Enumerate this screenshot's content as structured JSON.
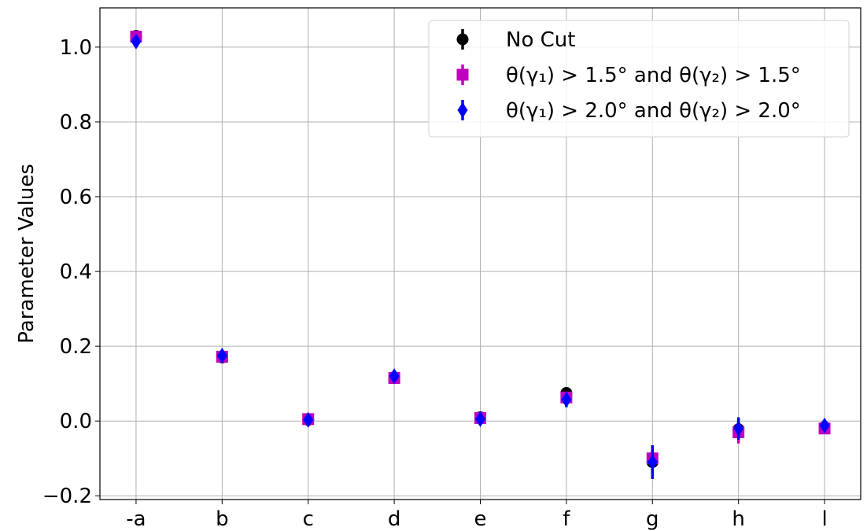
{
  "chart_data": {
    "type": "scatter",
    "categories": [
      "-a",
      "b",
      "c",
      "d",
      "e",
      "f",
      "g",
      "h",
      "l"
    ],
    "ylabel": "Parameter Values",
    "xlabel": "",
    "ylim": [
      -0.21,
      1.105
    ],
    "yticks": [
      -0.2,
      0.0,
      0.2,
      0.4,
      0.6,
      0.8,
      1.0
    ],
    "ytick_labels": [
      "−0.2",
      "0.0",
      "0.2",
      "0.4",
      "0.6",
      "0.8",
      "1.0"
    ],
    "grid": true,
    "legend_position": "top-right",
    "series": [
      {
        "name": "No Cut",
        "marker": "circle",
        "color": "#000000",
        "values": [
          1.03,
          0.17,
          0.003,
          0.115,
          0.01,
          0.075,
          -0.11,
          -0.022,
          -0.016
        ],
        "errors": [
          0.008,
          0.01,
          0.008,
          0.01,
          0.01,
          0.015,
          0.03,
          0.025,
          0.012
        ]
      },
      {
        "name": "θ(γ₁) > 1.5° and θ(γ₂) > 1.5°",
        "marker": "square",
        "color": "#bf00bf",
        "values": [
          1.028,
          0.172,
          0.005,
          0.115,
          0.008,
          0.063,
          -0.1,
          -0.03,
          -0.02
        ],
        "errors": [
          0.008,
          0.01,
          0.008,
          0.01,
          0.01,
          0.015,
          0.035,
          0.03,
          0.012
        ]
      },
      {
        "name": "θ(γ₁) > 2.0° and θ(γ₂) > 2.0°",
        "marker": "diamond",
        "color": "#0000ff",
        "values": [
          1.015,
          0.175,
          0.003,
          0.12,
          0.005,
          0.057,
          -0.11,
          -0.02,
          -0.012
        ],
        "errors": [
          0.01,
          0.012,
          0.01,
          0.012,
          0.012,
          0.02,
          0.045,
          0.03,
          0.015
        ]
      }
    ]
  }
}
